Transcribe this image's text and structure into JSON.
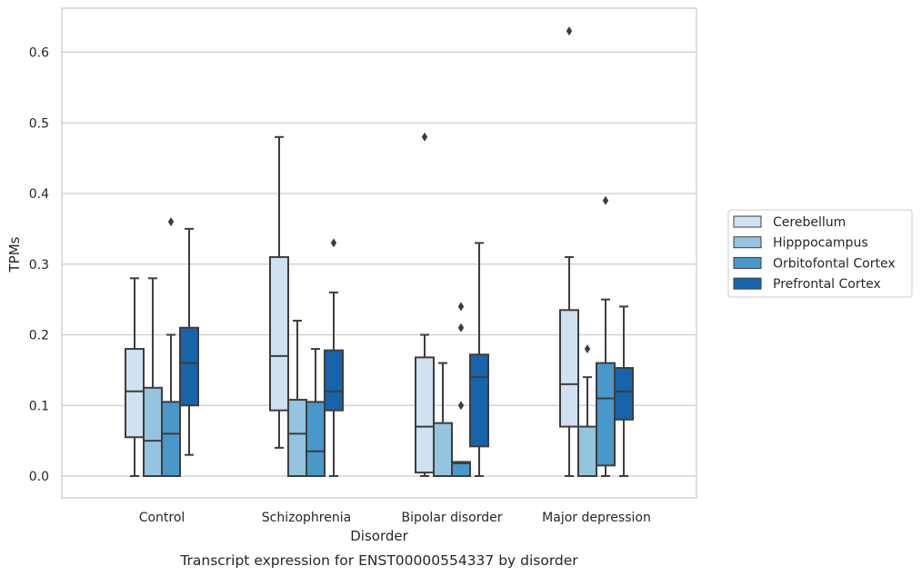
{
  "chart_data": {
    "type": "box",
    "caption": "Transcript expression for ENST00000554337 by disorder",
    "xlabel": "Disorder",
    "ylabel": "TPMs",
    "ylim": [
      -0.03,
      0.66
    ],
    "yticks": [
      0.0,
      0.1,
      0.2,
      0.3,
      0.4,
      0.5,
      0.6
    ],
    "ytick_labels": [
      "0.0",
      "0.1",
      "0.2",
      "0.3",
      "0.4",
      "0.5",
      "0.6"
    ],
    "grid": "horizontal",
    "legend_position": "right",
    "categories": [
      "Control",
      "Schizophrenia",
      "Bipolar disorder",
      "Major depression"
    ],
    "series": [
      {
        "name": "Cerebellum",
        "color": "#d0e1f2",
        "boxes": [
          {
            "whisker_low": 0.0,
            "q1": 0.055,
            "median": 0.12,
            "q3": 0.18,
            "whisker_high": 0.28,
            "outliers": []
          },
          {
            "whisker_low": 0.04,
            "q1": 0.093,
            "median": 0.17,
            "q3": 0.31,
            "whisker_high": 0.48,
            "outliers": []
          },
          {
            "whisker_low": 0.0,
            "q1": 0.005,
            "median": 0.07,
            "q3": 0.168,
            "whisker_high": 0.2,
            "outliers": [
              0.48
            ]
          },
          {
            "whisker_low": 0.0,
            "q1": 0.07,
            "median": 0.13,
            "q3": 0.235,
            "whisker_high": 0.31,
            "outliers": [
              0.63
            ]
          }
        ]
      },
      {
        "name": "Hipppocampus",
        "color": "#94c4df",
        "boxes": [
          {
            "whisker_low": 0.0,
            "q1": 0.0,
            "median": 0.05,
            "q3": 0.125,
            "whisker_high": 0.28,
            "outliers": []
          },
          {
            "whisker_low": 0.0,
            "q1": 0.0,
            "median": 0.06,
            "q3": 0.108,
            "whisker_high": 0.22,
            "outliers": []
          },
          {
            "whisker_low": 0.0,
            "q1": 0.0,
            "median": 0.0,
            "q3": 0.075,
            "whisker_high": 0.16,
            "outliers": []
          },
          {
            "whisker_low": 0.0,
            "q1": 0.0,
            "median": 0.0,
            "q3": 0.07,
            "whisker_high": 0.14,
            "outliers": [
              0.18
            ]
          }
        ]
      },
      {
        "name": "Orbitofontal Cortex",
        "color": "#4a98c9",
        "boxes": [
          {
            "whisker_low": 0.0,
            "q1": 0.0,
            "median": 0.06,
            "q3": 0.105,
            "whisker_high": 0.2,
            "outliers": [
              0.36
            ]
          },
          {
            "whisker_low": 0.0,
            "q1": 0.0,
            "median": 0.035,
            "q3": 0.105,
            "whisker_high": 0.18,
            "outliers": []
          },
          {
            "whisker_low": 0.0,
            "q1": 0.0,
            "median": 0.018,
            "q3": 0.02,
            "whisker_high": 0.02,
            "outliers": [
              0.1,
              0.21,
              0.24
            ]
          },
          {
            "whisker_low": 0.0,
            "q1": 0.015,
            "median": 0.11,
            "q3": 0.16,
            "whisker_high": 0.25,
            "outliers": [
              0.39
            ]
          }
        ]
      },
      {
        "name": "Prefrontal Cortex",
        "color": "#1764ab",
        "boxes": [
          {
            "whisker_low": 0.03,
            "q1": 0.1,
            "median": 0.16,
            "q3": 0.21,
            "whisker_high": 0.35,
            "outliers": []
          },
          {
            "whisker_low": 0.0,
            "q1": 0.093,
            "median": 0.12,
            "q3": 0.178,
            "whisker_high": 0.26,
            "outliers": [
              0.33
            ]
          },
          {
            "whisker_low": 0.0,
            "q1": 0.042,
            "median": 0.14,
            "q3": 0.172,
            "whisker_high": 0.33,
            "outliers": []
          },
          {
            "whisker_low": 0.0,
            "q1": 0.08,
            "median": 0.12,
            "q3": 0.153,
            "whisker_high": 0.24,
            "outliers": []
          }
        ]
      }
    ]
  }
}
